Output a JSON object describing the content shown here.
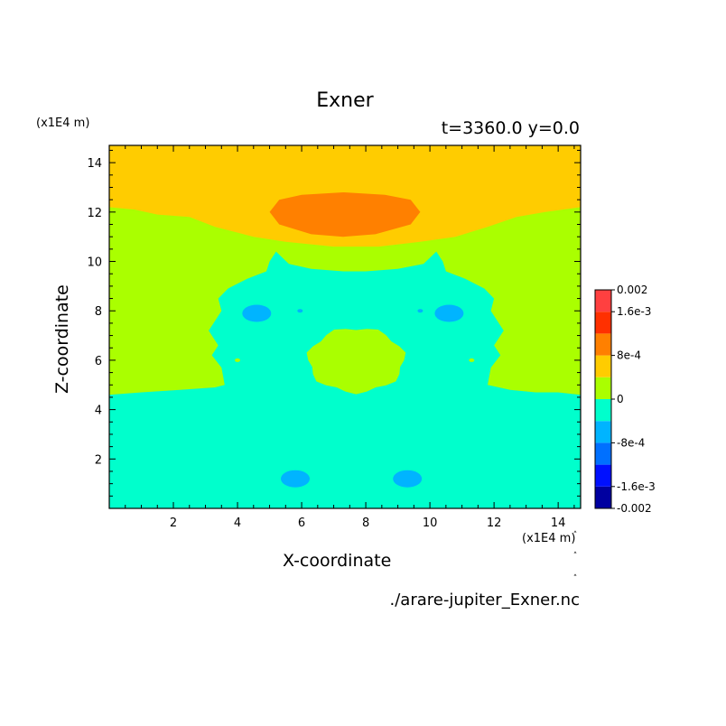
{
  "chart_data": {
    "type": "heatmap",
    "title": "Exner",
    "subtitle": "t=3360.0 y=0.0",
    "xlabel": "X-coordinate",
    "ylabel": "Z-coordinate",
    "x_unit": "(x1E4 m)",
    "y_unit": "(x1E4 m)",
    "xlim": [
      0,
      14.7
    ],
    "ylim": [
      0,
      14.7
    ],
    "xticks": [
      2,
      4,
      6,
      8,
      10,
      12,
      14
    ],
    "yticks": [
      2,
      4,
      6,
      8,
      10,
      12,
      14
    ],
    "colorbar": {
      "range": [
        -0.002,
        0.002
      ],
      "tick_labels": [
        "0.002",
        "1.6e-3",
        "8e-4",
        "0",
        "-8e-4",
        "-1.6e-3",
        "-0.002"
      ],
      "levels": [
        {
          "lo": -0.002,
          "hi": -0.0016,
          "color": "#0000a0"
        },
        {
          "lo": -0.0016,
          "hi": -0.0012,
          "color": "#0010ff"
        },
        {
          "lo": -0.0012,
          "hi": -0.0008,
          "color": "#0070ff"
        },
        {
          "lo": -0.0008,
          "hi": -0.0004,
          "color": "#00b4ff"
        },
        {
          "lo": -0.0004,
          "hi": 0.0,
          "color": "#00ffcc"
        },
        {
          "lo": 0.0,
          "hi": 0.0004,
          "color": "#aaff00"
        },
        {
          "lo": 0.0004,
          "hi": 0.0008,
          "color": "#ffcc00"
        },
        {
          "lo": 0.0008,
          "hi": 0.0012,
          "color": "#ff8000"
        },
        {
          "lo": 0.0012,
          "hi": 0.0016,
          "color": "#ff3000"
        },
        {
          "lo": 0.0016,
          "hi": 0.002,
          "color": "#ff4040"
        }
      ]
    },
    "regions": {
      "upper_band": {
        "level": "4e-4 to 8e-4",
        "color": "#ffcc00"
      },
      "top_max": {
        "level": "8e-4 to 1.2e-3",
        "color": "#ff8000",
        "x_range": [
          5,
          9.7
        ],
        "z_range": [
          11,
          12.8
        ]
      },
      "middle_band": {
        "level": "0 to 4e-4",
        "color": "#aaff00"
      },
      "central_bubble": {
        "level": "0 to 4e-4",
        "color": "#aaff00",
        "center": [
          7.7,
          6
        ],
        "radius": 1.3
      },
      "lower_region": {
        "level": "-4e-4 to 0",
        "color": "#00ffcc"
      },
      "minima": [
        {
          "center": [
            4.6,
            7.9
          ],
          "level": "-8e-4 to -4e-4"
        },
        {
          "center": [
            10.6,
            7.9
          ],
          "level": "-8e-4 to -4e-4"
        },
        {
          "center": [
            5.8,
            1.2
          ],
          "level": "-8e-4 to -4e-4"
        },
        {
          "center": [
            9.3,
            1.2
          ],
          "level": "-8e-4 to -4e-4"
        }
      ]
    }
  },
  "filename": "./arare-jupiter_Exner.nc"
}
